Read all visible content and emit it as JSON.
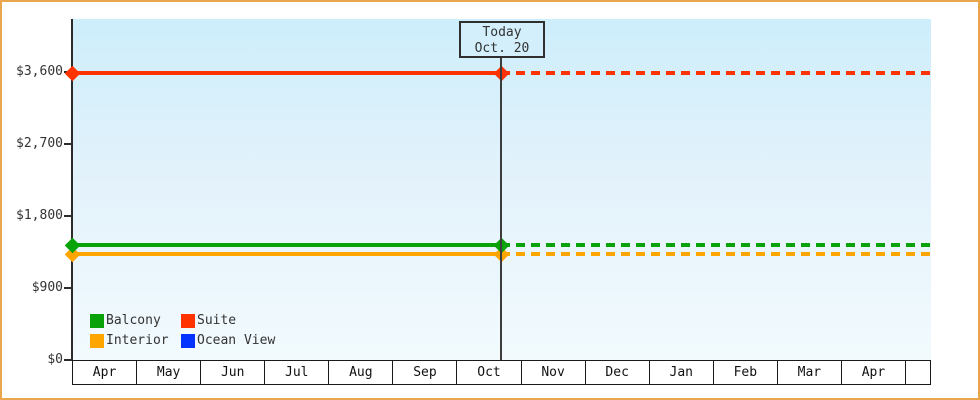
{
  "window": {
    "border_color": "#e9a64f"
  },
  "chart_data": {
    "type": "line",
    "title": "",
    "xlabel": "",
    "ylabel": "",
    "x_categories": [
      "Apr",
      "May",
      "Jun",
      "Jul",
      "Aug",
      "Sep",
      "Oct",
      "Nov",
      "Dec",
      "Jan",
      "Feb",
      "Mar",
      "Apr"
    ],
    "y_ticks": [
      {
        "label": "$0",
        "value": 0
      },
      {
        "label": "$900",
        "value": 900
      },
      {
        "label": "$1,800",
        "value": 1800
      },
      {
        "label": "$2,700",
        "value": 2700
      },
      {
        "label": "$3,600",
        "value": 3600
      }
    ],
    "ylim": [
      0,
      4260
    ],
    "grid": false,
    "legend_position": "bottom-left",
    "series": [
      {
        "name": "Balcony",
        "color": "#09a309",
        "value": 1440,
        "style_before_today": "solid",
        "style_after_today": "dashed"
      },
      {
        "name": "Suite",
        "color": "#ff3300",
        "value": 3590,
        "style_before_today": "solid",
        "style_after_today": "dashed"
      },
      {
        "name": "Interior",
        "color": "#ffa500",
        "value": 1330,
        "style_before_today": "solid",
        "style_after_today": "dashed"
      },
      {
        "name": "Ocean View",
        "color": "#0433ff",
        "value": null
      }
    ],
    "annotation": {
      "line1": "Today",
      "line2": "Oct. 20"
    }
  }
}
